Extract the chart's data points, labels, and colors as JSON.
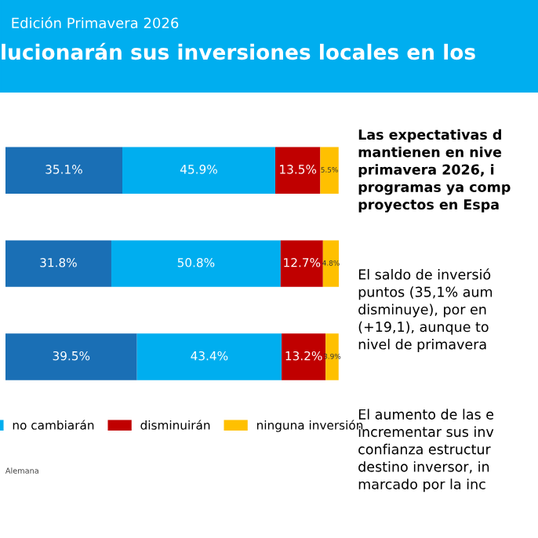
{
  "chart_data": {
    "type": "bar",
    "orientation": "horizontal",
    "stacked": true,
    "title": "lucionarán sus inversiones locales en los",
    "subtitle": "Edición Primavera 2026",
    "categories": [
      null,
      null,
      null
    ],
    "series": [
      {
        "color": "#1a6fb5",
        "values": [
          35.1,
          31.8,
          39.5
        ],
        "value_labels": [
          "35.1%",
          "31.8%",
          "39.5%"
        ]
      },
      {
        "name": "no cambiarán",
        "color": "#00aeef",
        "values": [
          45.9,
          50.8,
          43.4
        ],
        "value_labels": [
          "45.9%",
          "50.8%",
          "43.4%"
        ]
      },
      {
        "name": "disminuirán",
        "color": "#c00000",
        "values": [
          13.5,
          12.7,
          13.2
        ],
        "value_labels": [
          "13.5%",
          "12.7%",
          "13.2%"
        ]
      },
      {
        "name": "ninguna inversión",
        "color": "#ffc000",
        "values": [
          5.5,
          4.8,
          3.9
        ],
        "value_labels": [
          "5.5%",
          "4.8%",
          "3.9%"
        ]
      }
    ],
    "legend": "bottom",
    "annotations": [
      "Las expectativas d\nmantienen en nive\nprimavera 2026, i\nprogramas ya comp\nproyectos en Espa",
      "El saldo de inversió\npuntos (35,1% aum\ndisminuye), por en\n(+19,1), aunque to\nnivel de primavera",
      "El aumento de las e\nincrementar sus inv\nconfianza estructur\ndestino inversor, in\nmarcado por la inc",
      "Alemana"
    ]
  }
}
